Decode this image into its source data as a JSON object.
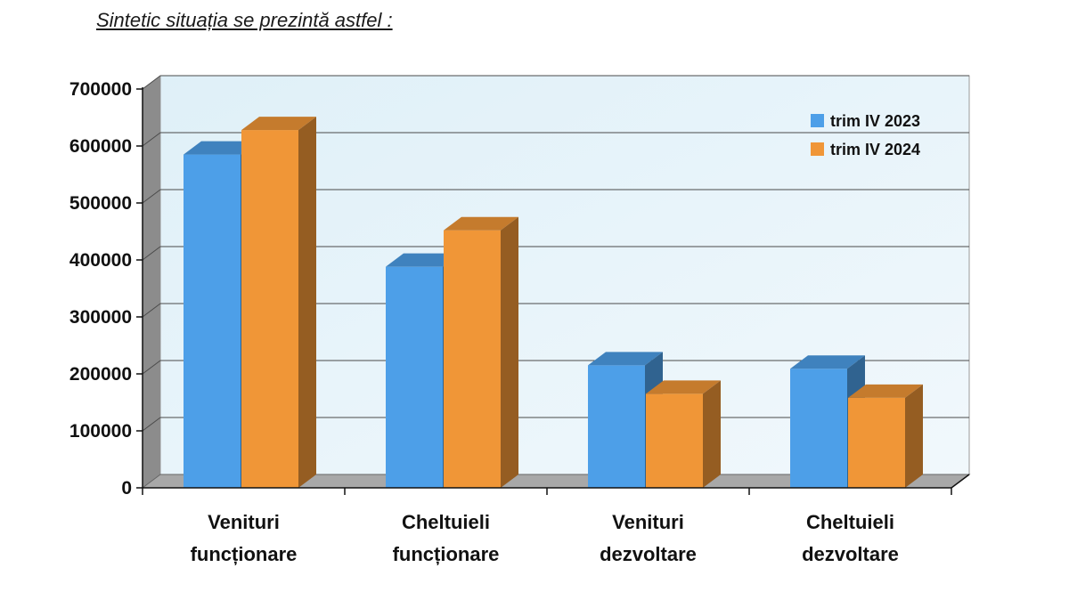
{
  "heading": "Sintetic situația se prezintă astfel :",
  "chart_data": {
    "type": "bar",
    "categories": [
      [
        "Venituri",
        "funcționare"
      ],
      [
        "Cheltuieli",
        "funcționare"
      ],
      [
        "Venituri",
        "dezvoltare"
      ],
      [
        "Cheltuieli",
        "dezvoltare"
      ]
    ],
    "series": [
      {
        "name": "trim IV 2023",
        "color": "#4d9fe8",
        "values": [
          585000,
          388000,
          215000,
          209000
        ]
      },
      {
        "name": "trim IV 2024",
        "color": "#f09637",
        "values": [
          628000,
          452000,
          165000,
          158000
        ]
      }
    ],
    "yticks": [
      "0",
      "100000",
      "200000",
      "300000",
      "400000",
      "500000",
      "600000",
      "700000"
    ],
    "ylim": [
      0,
      700000
    ],
    "grid": true,
    "legend": "top-right",
    "style": "3d"
  }
}
